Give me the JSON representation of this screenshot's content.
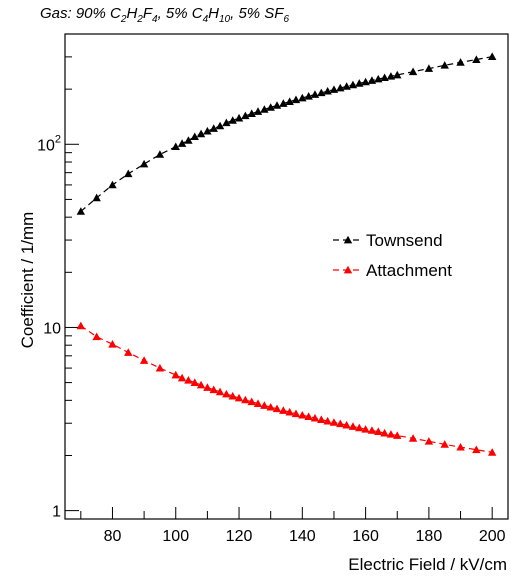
{
  "title": {
    "text": "Gas: 90% C2H2F4, 5% C4H10, 5% SF6",
    "parts": [
      {
        "t": "Gas: 90% C"
      },
      {
        "sub": "2"
      },
      {
        "t": "H"
      },
      {
        "sub": "2"
      },
      {
        "t": "F"
      },
      {
        "sub": "4"
      },
      {
        "t": ", 5% C"
      },
      {
        "sub": "4"
      },
      {
        "t": "H"
      },
      {
        "sub": "10"
      },
      {
        "t": ", 5% SF"
      },
      {
        "sub": "6"
      }
    ]
  },
  "chart_data": {
    "type": "scatter",
    "xlabel": "Electric Field / kV/cm",
    "ylabel": "Coefficient / 1/mm",
    "xlim": [
      65,
      205
    ],
    "ylim": [
      0.9,
      400
    ],
    "yscale": "log",
    "x_ticks": [
      "80",
      "100",
      "120",
      "140",
      "160",
      "180",
      "200"
    ],
    "y_ticks": [
      "1",
      "10",
      "10^2"
    ],
    "legend_position": "center-right",
    "series": [
      {
        "name": "Townsend",
        "color": "#000000",
        "marker": "triangle",
        "line": "dashed",
        "x": [
          70,
          75,
          80,
          85,
          90,
          95,
          100,
          102,
          104,
          106,
          108,
          110,
          112,
          114,
          116,
          118,
          120,
          122,
          124,
          126,
          128,
          130,
          132,
          134,
          136,
          138,
          140,
          142,
          144,
          146,
          148,
          150,
          152,
          154,
          156,
          158,
          160,
          162,
          164,
          166,
          168,
          170,
          175,
          180,
          185,
          190,
          195,
          200
        ],
        "y": [
          43,
          51,
          60,
          69,
          78,
          88,
          97,
          101,
          105,
          110,
          114,
          118,
          122,
          126,
          131,
          135,
          139,
          143,
          147,
          151,
          155,
          159,
          163,
          167,
          171,
          175,
          179,
          183,
          187,
          191,
          195,
          199,
          203,
          207,
          211,
          215,
          219,
          223,
          227,
          231,
          235,
          239,
          249,
          259,
          270,
          280,
          290,
          301
        ]
      },
      {
        "name": "Attachment",
        "color": "#ff0000",
        "marker": "triangle",
        "line": "dashed",
        "x": [
          70,
          75,
          80,
          85,
          90,
          95,
          100,
          102,
          104,
          106,
          108,
          110,
          112,
          114,
          116,
          118,
          120,
          122,
          124,
          126,
          128,
          130,
          132,
          134,
          136,
          138,
          140,
          142,
          144,
          146,
          148,
          150,
          152,
          154,
          156,
          158,
          160,
          162,
          164,
          166,
          168,
          170,
          175,
          180,
          185,
          190,
          195,
          200
        ],
        "y": [
          10.2,
          8.9,
          8.1,
          7.3,
          6.6,
          6.0,
          5.5,
          5.3,
          5.15,
          5.0,
          4.85,
          4.7,
          4.57,
          4.45,
          4.33,
          4.22,
          4.12,
          4.02,
          3.93,
          3.84,
          3.75,
          3.67,
          3.6,
          3.52,
          3.45,
          3.38,
          3.32,
          3.26,
          3.2,
          3.14,
          3.08,
          3.03,
          2.98,
          2.93,
          2.88,
          2.83,
          2.78,
          2.74,
          2.7,
          2.65,
          2.61,
          2.57,
          2.48,
          2.39,
          2.3,
          2.22,
          2.15,
          2.08
        ]
      }
    ]
  }
}
